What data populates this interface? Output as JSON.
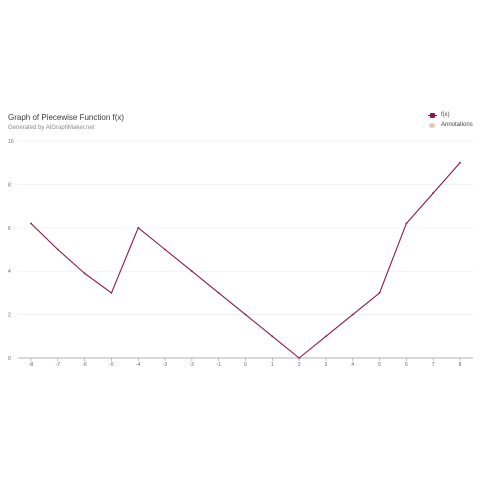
{
  "chart_data": {
    "type": "line",
    "title": "Graph of Piecewise Function f(x)",
    "subtitle": "Generated by AIGraphMaker.net",
    "xlabel": "",
    "ylabel": "",
    "xlim": [
      -8,
      8
    ],
    "ylim": [
      0,
      10
    ],
    "x_ticks": [
      "-8",
      "-7",
      "-6",
      "-5",
      "-4",
      "-3",
      "-2",
      "-1",
      "0",
      "1",
      "2",
      "3",
      "4",
      "5",
      "6",
      "7",
      "8"
    ],
    "y_ticks": [
      "0",
      "2",
      "4",
      "6",
      "8",
      "10"
    ],
    "grid": true,
    "legend_position": "top-right",
    "series": [
      {
        "name": "f(x)",
        "color": "#8b1a4a",
        "points": [
          {
            "x": -8,
            "y": 6.2
          },
          {
            "x": -7,
            "y": 5
          },
          {
            "x": -6,
            "y": 3.9
          },
          {
            "x": -5,
            "y": 3
          },
          {
            "x": -4,
            "y": 6
          },
          {
            "x": -3,
            "y": 5
          },
          {
            "x": -2,
            "y": 4
          },
          {
            "x": -1,
            "y": 3
          },
          {
            "x": 0,
            "y": 2
          },
          {
            "x": 1,
            "y": 1
          },
          {
            "x": 2,
            "y": 0
          },
          {
            "x": 3,
            "y": 1
          },
          {
            "x": 4,
            "y": 2
          },
          {
            "x": 5,
            "y": 3
          },
          {
            "x": 6,
            "y": 6.2
          },
          {
            "x": 7,
            "y": 7.6
          },
          {
            "x": 8,
            "y": 9
          }
        ]
      }
    ],
    "legend": [
      {
        "label": "f(x)",
        "color": "#8b1a4a",
        "shape": "square"
      },
      {
        "label": "Annotations",
        "color": "#e8c9b4",
        "shape": "circle"
      }
    ]
  }
}
